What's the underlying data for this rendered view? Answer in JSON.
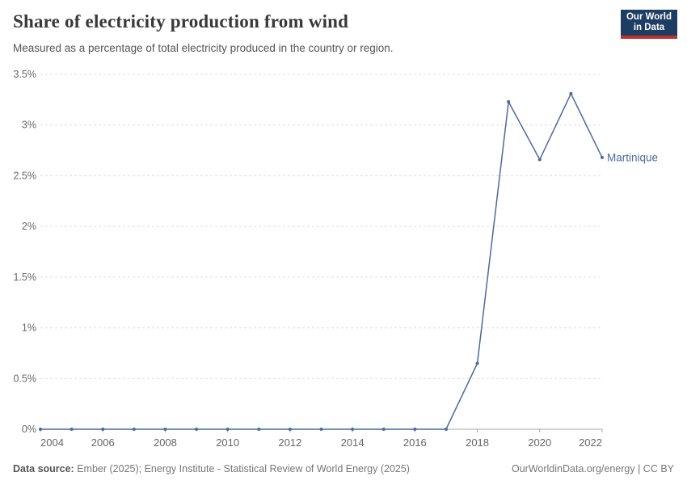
{
  "header": {
    "title": "Share of electricity production from wind",
    "subtitle": "Measured as a percentage of total electricity produced in the country or region."
  },
  "logo": {
    "line1": "Our World",
    "line2": "in Data",
    "bg_color": "#1d3d63",
    "accent_color": "#c0332a"
  },
  "footer": {
    "source_label": "Data source:",
    "source_text": " Ember (2025); Energy Institute - Statistical Review of World Energy (2025)",
    "right_text": "OurWorldinData.org/energy | CC BY"
  },
  "chart_data": {
    "type": "line",
    "title": "Share of electricity production from wind",
    "x": [
      2004,
      2005,
      2006,
      2007,
      2008,
      2009,
      2010,
      2011,
      2012,
      2013,
      2014,
      2015,
      2016,
      2017,
      2018,
      2019,
      2020,
      2021,
      2022
    ],
    "series": [
      {
        "name": "Martinique",
        "color": "#4C6A9C",
        "values": [
          0,
          0,
          0,
          0,
          0,
          0,
          0,
          0,
          0,
          0,
          0,
          0,
          0,
          0,
          0.65,
          3.23,
          2.66,
          3.31,
          2.68
        ]
      }
    ],
    "xlabel": "",
    "ylabel": "",
    "ylim": [
      0,
      3.5
    ],
    "xlim": [
      2004,
      2022
    ],
    "yticks": [
      {
        "value": 0,
        "label": "0%"
      },
      {
        "value": 0.5,
        "label": "0.5%"
      },
      {
        "value": 1,
        "label": "1%"
      },
      {
        "value": 1.5,
        "label": "1.5%"
      },
      {
        "value": 2,
        "label": "2%"
      },
      {
        "value": 2.5,
        "label": "2.5%"
      },
      {
        "value": 3,
        "label": "3%"
      },
      {
        "value": 3.5,
        "label": "3.5%"
      }
    ],
    "xticks": [
      {
        "value": 2004,
        "label": "2004"
      },
      {
        "value": 2006,
        "label": "2006"
      },
      {
        "value": 2008,
        "label": "2008"
      },
      {
        "value": 2010,
        "label": "2010"
      },
      {
        "value": 2012,
        "label": "2012"
      },
      {
        "value": 2014,
        "label": "2014"
      },
      {
        "value": 2016,
        "label": "2016"
      },
      {
        "value": 2018,
        "label": "2018"
      },
      {
        "value": 2020,
        "label": "2020"
      },
      {
        "value": 2022,
        "label": "2022"
      }
    ],
    "grid": "horizontal-dashed",
    "legend": "end-of-line entity label",
    "axis_color": "#a8a8a8",
    "grid_color": "#dcdcdc",
    "tick_label_color": "#666666"
  }
}
